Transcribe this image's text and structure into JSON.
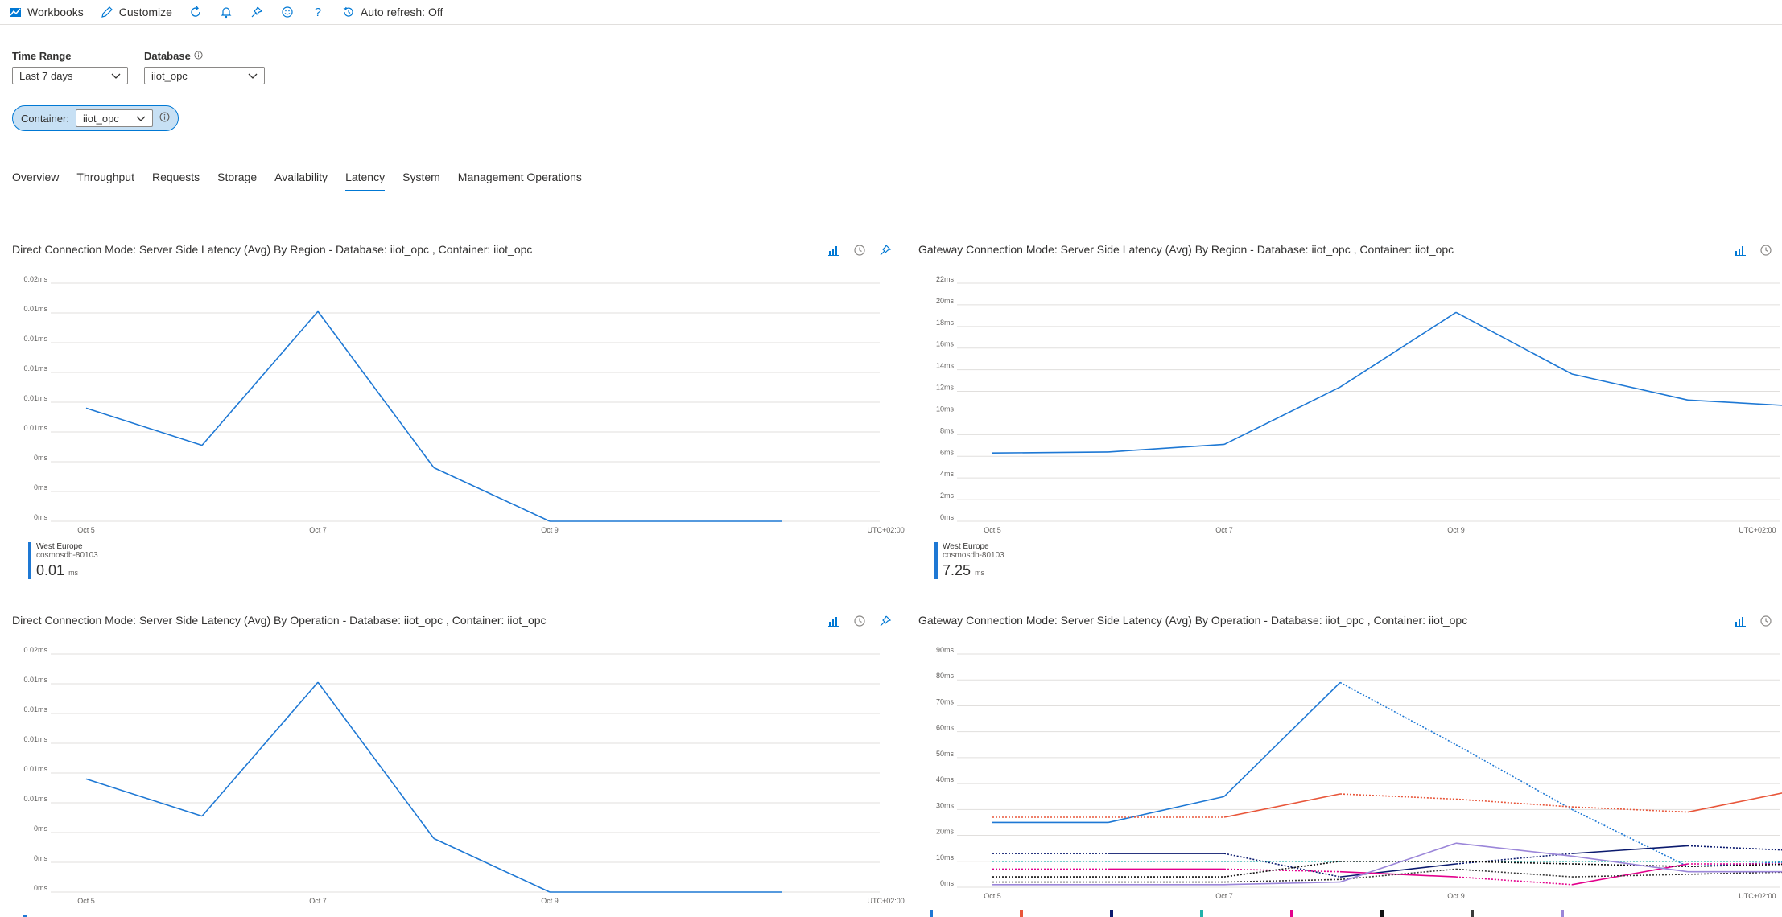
{
  "toolbar": {
    "workbooks": "Workbooks",
    "customize": "Customize",
    "auto_refresh": "Auto refresh: Off"
  },
  "filters": {
    "time_range_label": "Time Range",
    "time_range_value": "Last 7 days",
    "database_label": "Database",
    "database_value": "iiot_opc",
    "container_label": "Container:",
    "container_value": "iiot_opc"
  },
  "tabs": [
    "Overview",
    "Throughput",
    "Requests",
    "Storage",
    "Availability",
    "Latency",
    "System",
    "Management Operations"
  ],
  "active_tab": "Latency",
  "colors": {
    "accent": "#0078d4",
    "series_blue": "#1e78d4"
  },
  "panels": {
    "p1": {
      "title": "Direct Connection Mode: Server Side Latency (Avg) By Region - Database: iiot_opc , Container: iiot_opc",
      "legend_name": "West Europe",
      "legend_sub": "cosmosdb-80103",
      "legend_value": "0.01",
      "legend_unit": "ms"
    },
    "p2": {
      "title": "Gateway Connection Mode: Server Side Latency (Avg) By Region - Database: iiot_opc , Container: iiot_opc",
      "legend_name": "West Europe",
      "legend_sub": "cosmosdb-80103",
      "legend_value": "7.25",
      "legend_unit": "ms"
    },
    "p3": {
      "title": "Direct Connection Mode: Server Side Latency (Avg) By Operation - Database: iiot_opc , Container: iiot_opc"
    },
    "p4": {
      "title": "Gateway Connection Mode: Server Side Latency (Avg) By Operation - Database: iiot_opc , Container: iiot_opc"
    }
  },
  "chart_data": [
    {
      "type": "line",
      "title": "Direct Connection Mode: Server Side Latency (Avg) By Region - Database: iiot_opc , Container: iiot_opc",
      "y_tick_labels": [
        "0.02ms",
        "0.01ms",
        "0.01ms",
        "0.01ms",
        "0.01ms",
        "0.01ms",
        "0ms",
        "0ms",
        "0ms"
      ],
      "x_tick_labels": [
        "Oct 5",
        "Oct 7",
        "Oct 9",
        "UTC+02:00"
      ],
      "x": [
        "Oct 5",
        "Oct 6",
        "Oct 7",
        "Oct 8",
        "Oct 9",
        "Oct 10",
        "Oct 11"
      ],
      "ylim": [
        0,
        0.016
      ],
      "series": [
        {
          "name": "West Europe",
          "color": "#1e78d4",
          "style": "solid",
          "values": [
            0.0076,
            0.0051,
            0.0141,
            0.0036,
            0,
            0,
            0
          ]
        }
      ]
    },
    {
      "type": "line",
      "title": "Gateway Connection Mode: Server Side Latency (Avg) By Region - Database: iiot_opc , Container: iiot_opc",
      "y_tick_labels": [
        "22ms",
        "20ms",
        "18ms",
        "16ms",
        "14ms",
        "12ms",
        "10ms",
        "8ms",
        "6ms",
        "4ms",
        "2ms",
        "0ms"
      ],
      "x_tick_labels": [
        "Oct 5",
        "Oct 7",
        "Oct 9",
        "UTC+02:00"
      ],
      "x": [
        "Oct 5",
        "Oct 6",
        "Oct 7",
        "Oct 8",
        "Oct 9",
        "Oct 10",
        "Oct 11",
        "Oct 12"
      ],
      "ylim": [
        0,
        22
      ],
      "series": [
        {
          "name": "West Europe",
          "color": "#1e78d4",
          "style": "solid",
          "values": [
            6.3,
            6.4,
            7.1,
            12.4,
            19.3,
            13.6,
            11.2,
            10.6
          ]
        }
      ]
    },
    {
      "type": "line",
      "title": "Direct Connection Mode: Server Side Latency (Avg) By Operation - Database: iiot_opc , Container: iiot_opc",
      "y_tick_labels": [
        "0.02ms",
        "0.01ms",
        "0.01ms",
        "0.01ms",
        "0.01ms",
        "0.01ms",
        "0ms",
        "0ms",
        "0ms"
      ],
      "x_tick_labels": [
        "Oct 5",
        "Oct 7",
        "Oct 9",
        "UTC+02:00"
      ],
      "x": [
        "Oct 5",
        "Oct 6",
        "Oct 7",
        "Oct 8",
        "Oct 9",
        "Oct 10",
        "Oct 11"
      ],
      "ylim": [
        0,
        0.016
      ],
      "series": [
        {
          "color": "#1e78d4",
          "style": "solid",
          "values": [
            0.0076,
            0.0051,
            0.0141,
            0.0036,
            0,
            0,
            0
          ]
        }
      ]
    },
    {
      "type": "line",
      "title": "Gateway Connection Mode: Server Side Latency (Avg) By Operation - Database: iiot_opc , Container: iiot_opc",
      "y_tick_labels": [
        "90ms",
        "80ms",
        "70ms",
        "60ms",
        "50ms",
        "40ms",
        "30ms",
        "20ms",
        "10ms",
        "0ms"
      ],
      "x_tick_labels": [
        "Oct 5",
        "Oct 7",
        "Oct 9",
        "UTC+02:00"
      ],
      "x": [
        "Oct 5",
        "Oct 6",
        "Oct 7",
        "Oct 8",
        "Oct 9",
        "Oct 10",
        "Oct 11",
        "Oct 12"
      ],
      "ylim": [
        0,
        90
      ],
      "series": [
        {
          "color": "#1e78d4",
          "style": "solid-then-dotted",
          "values": [
            25,
            25,
            35,
            79,
            55,
            30,
            8,
            10
          ]
        },
        {
          "color": "#e8563a",
          "style": "dotted-then-solid",
          "values": [
            27,
            27,
            27,
            36,
            34,
            31,
            29,
            38
          ]
        },
        {
          "color": "#0b1a6e",
          "style": "mixed",
          "values": [
            13,
            13,
            13,
            4,
            9,
            13,
            16,
            14
          ]
        },
        {
          "color": "#20b2aa",
          "style": "dotted",
          "values": [
            10,
            10,
            10,
            10,
            10,
            10,
            10,
            10
          ]
        },
        {
          "color": "#e3008c",
          "style": "mixed",
          "values": [
            7,
            7,
            7,
            6,
            4,
            1,
            9,
            9
          ]
        },
        {
          "color": "#111111",
          "style": "dotted",
          "values": [
            4,
            4,
            4,
            10,
            10,
            9,
            8,
            9
          ]
        },
        {
          "color": "#3a3a3a",
          "style": "dotted",
          "values": [
            2,
            2,
            2,
            3,
            7,
            4,
            5,
            6
          ]
        },
        {
          "color": "#9b86d9",
          "style": "solid",
          "values": [
            1,
            1,
            1,
            2,
            17,
            12,
            6,
            6
          ]
        }
      ]
    }
  ]
}
